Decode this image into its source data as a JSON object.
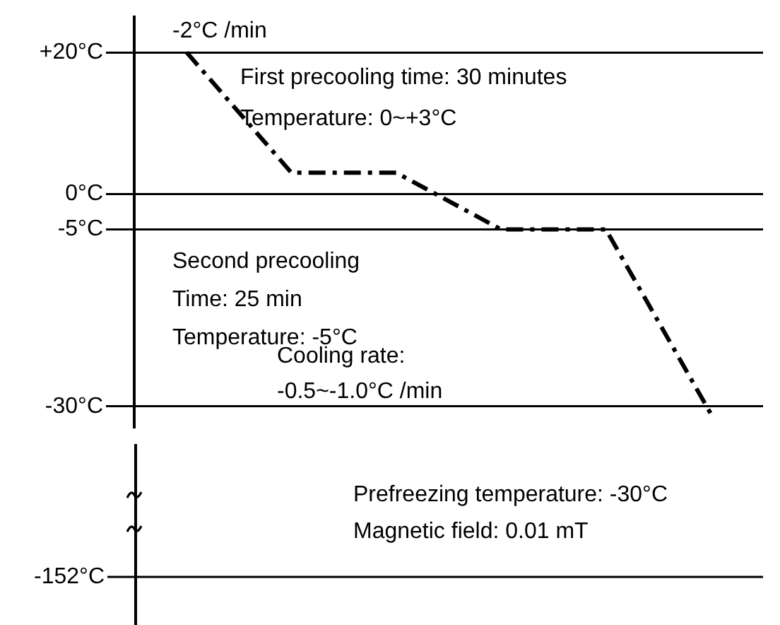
{
  "chart_data": [
    {
      "type": "line",
      "categories": [
        null,
        null,
        null,
        null,
        null,
        null
      ],
      "series": [
        {
          "color": "#000000",
          "values": [
            20,
            3,
            3,
            -5,
            -5,
            -31
          ]
        }
      ],
      "ylim": [
        -33,
        25
      ],
      "yticks": [
        {
          "value": 20,
          "label": "+20°C"
        },
        {
          "value": 0,
          "label": "0°C"
        },
        {
          "value": -5,
          "label": "-5°C"
        },
        {
          "value": -30,
          "label": "-30°C"
        }
      ],
      "grid": "y",
      "legend": false,
      "marker": "none",
      "line_style": "dashed",
      "tick_labels": "y",
      "annotations": [
        "-2°C /min",
        "First precooling time: 30 minutes",
        "Temperature: 0~+3°C",
        "Second precooling",
        "Time: 25 min",
        "Temperature: -5°C",
        "Cooling rate:",
        "-0.5~-1.0°C /min"
      ]
    },
    {
      "type": "other",
      "annotations": [
        "-152°C",
        "Prefreezing temperature: -30°C",
        "Magnetic field: 0.01 mT"
      ]
    }
  ]
}
